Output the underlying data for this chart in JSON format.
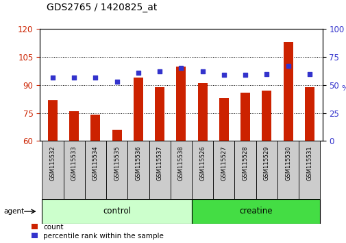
{
  "title": "GDS2765 / 1420825_at",
  "categories": [
    "GSM115532",
    "GSM115533",
    "GSM115534",
    "GSM115535",
    "GSM115536",
    "GSM115537",
    "GSM115538",
    "GSM115526",
    "GSM115527",
    "GSM115528",
    "GSM115529",
    "GSM115530",
    "GSM115531"
  ],
  "bar_values": [
    82,
    76,
    74,
    66,
    94,
    89,
    100,
    91,
    83,
    86,
    87,
    113,
    89
  ],
  "dot_percentiles": [
    57,
    57,
    57,
    53,
    61,
    62,
    65,
    62,
    59,
    59,
    60,
    67,
    60
  ],
  "bar_color": "#cc2200",
  "dot_color": "#3333cc",
  "ylim_left": [
    60,
    120
  ],
  "ylim_right": [
    0,
    100
  ],
  "left_ticks": [
    60,
    75,
    90,
    105,
    120
  ],
  "right_ticks": [
    0,
    25,
    50,
    75,
    100
  ],
  "groups": [
    {
      "label": "control",
      "indices": [
        0,
        1,
        2,
        3,
        4,
        5,
        6
      ],
      "color": "#ccffcc"
    },
    {
      "label": "creatine",
      "indices": [
        7,
        8,
        9,
        10,
        11,
        12
      ],
      "color": "#44dd44"
    }
  ],
  "agent_label": "agent",
  "legend": [
    {
      "label": "count",
      "color": "#cc2200"
    },
    {
      "label": "percentile rank within the sample",
      "color": "#3333cc"
    }
  ],
  "background_color": "#ffffff",
  "tick_label_color_left": "#cc2200",
  "tick_label_color_right": "#3333cc",
  "label_bg_color": "#cccccc",
  "bar_width": 0.45,
  "dot_size": 22
}
